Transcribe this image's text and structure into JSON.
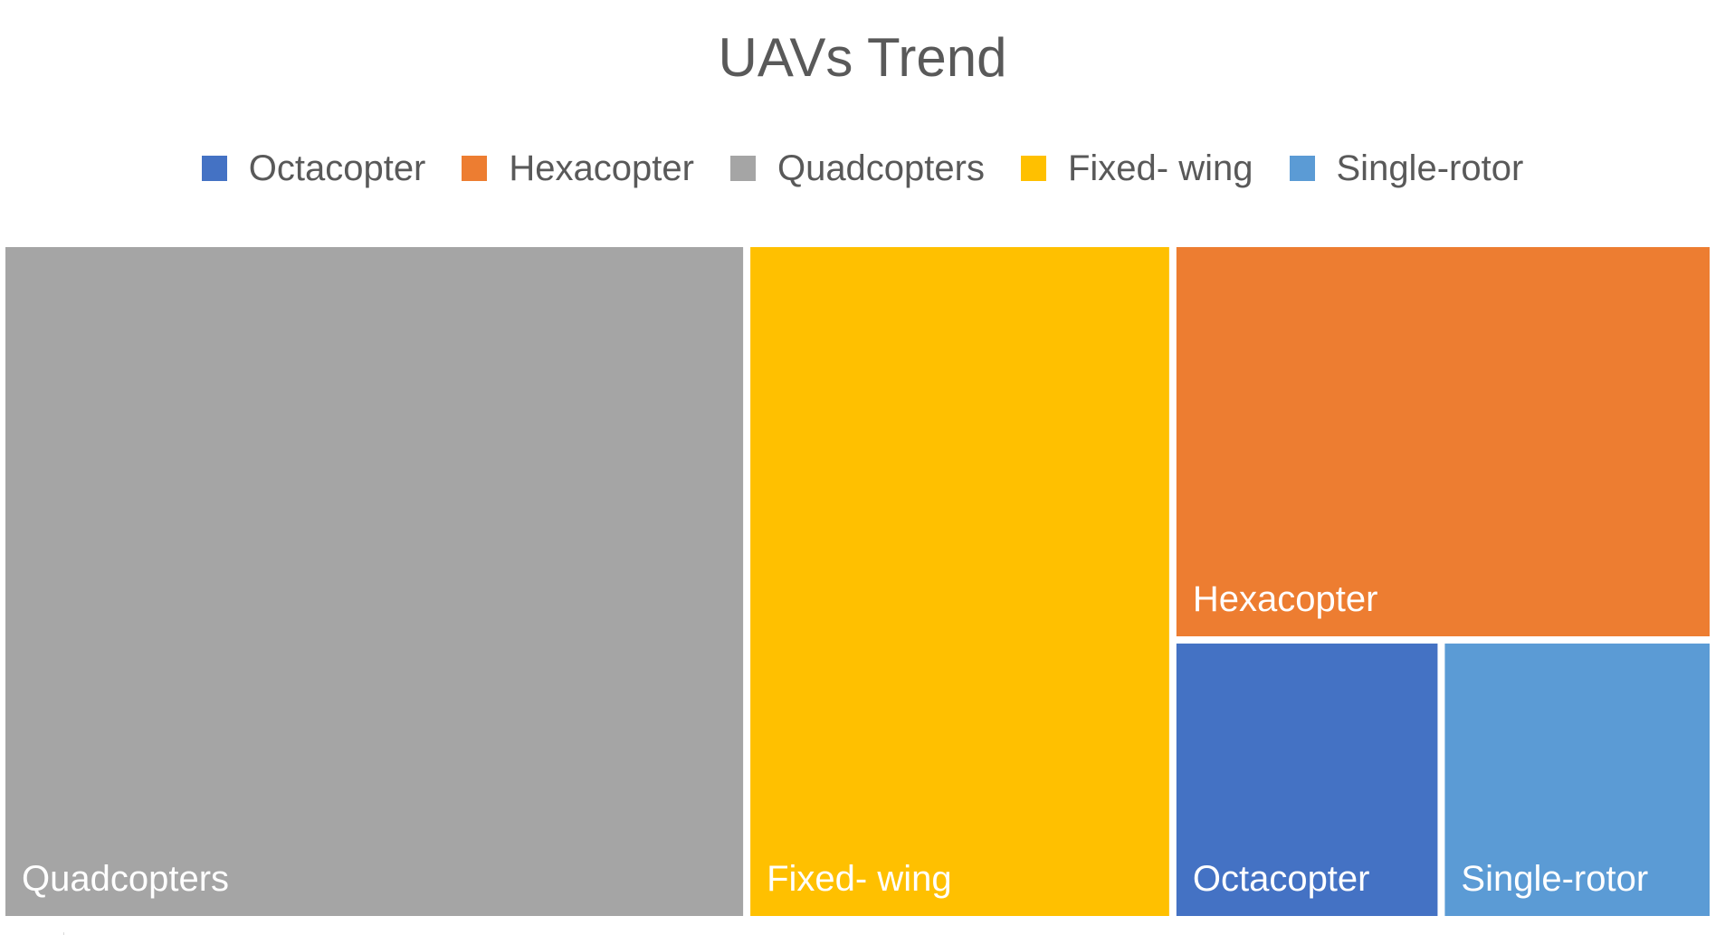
{
  "chart_data": {
    "type": "treemap",
    "title": "UAVs Trend",
    "legend_placement": "top",
    "series": [
      {
        "name": "Octacopter",
        "color": "#4472C4"
      },
      {
        "name": "Hexacopter",
        "color": "#ED7D31"
      },
      {
        "name": "Quadcopters",
        "color": "#A5A5A5"
      },
      {
        "name": "Fixed- wing",
        "color": "#FFC000"
      },
      {
        "name": "Single-rotor",
        "color": "#5B9BD5"
      }
    ],
    "tiles": [
      {
        "label": "Quadcopters",
        "value": 43.5,
        "color": "#A5A5A5"
      },
      {
        "label": "Fixed- wing",
        "value": 25.0,
        "color": "#FFC000"
      },
      {
        "label": "Hexacopter",
        "value": 18.5,
        "color": "#ED7D31"
      },
      {
        "label": "Octacopter",
        "value": 6.5,
        "color": "#4472C4"
      },
      {
        "label": "Single-rotor",
        "value": 6.5,
        "color": "#5B9BD5"
      }
    ]
  }
}
